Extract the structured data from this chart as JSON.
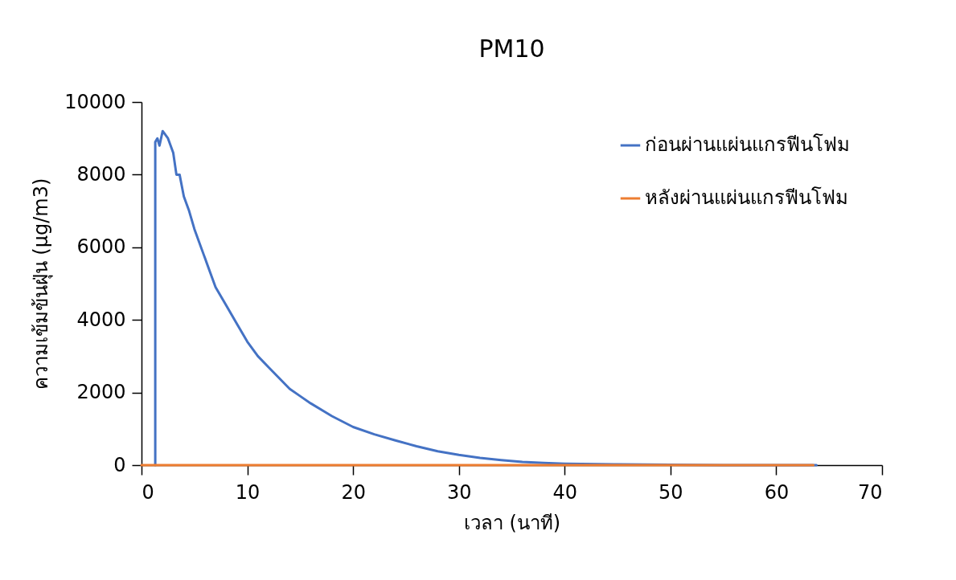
{
  "chart_data": {
    "type": "line",
    "title": "PM10",
    "xlabel": "เวลา (นาที)",
    "ylabel": "ความเข้มข้นฝุ่น (µg/m3)",
    "xlim": [
      0,
      70
    ],
    "xticks": [
      0,
      10,
      20,
      30,
      40,
      50,
      60,
      70
    ],
    "ylim": [
      0,
      10000
    ],
    "yticks": [
      0,
      2000,
      4000,
      6000,
      8000,
      10000
    ],
    "grid": false,
    "legend": "top right",
    "marker": "none",
    "line_style": "solid",
    "series": [
      {
        "name": "ก่อนผ่านแผ่นแกรฟีนโฟม",
        "color": "#4472c4",
        "x": [
          1.3,
          1.3,
          1.5,
          1.7,
          2.0,
          2.5,
          3.0,
          3.3,
          3.6,
          4.0,
          4.5,
          5,
          6,
          6.5,
          7,
          8,
          9,
          10,
          11,
          12,
          13,
          14,
          15,
          16,
          18,
          20,
          22,
          24,
          26,
          28,
          30,
          32,
          34,
          36,
          38,
          40,
          45,
          50,
          55,
          60,
          63.8
        ],
        "values": [
          0,
          8900,
          9000,
          8800,
          9200,
          9000,
          8600,
          8000,
          8000,
          7400,
          7000,
          6500,
          5700,
          5300,
          4900,
          4400,
          3900,
          3400,
          3000,
          2700,
          2400,
          2100,
          1900,
          1700,
          1350,
          1050,
          850,
          680,
          520,
          380,
          280,
          200,
          140,
          90,
          60,
          40,
          20,
          10,
          0,
          0,
          0
        ]
      },
      {
        "name": "หลังผ่านแผ่นแกรฟีนโฟม",
        "color": "#ed7d31",
        "x": [
          0,
          63.5
        ],
        "values": [
          0,
          0
        ]
      }
    ]
  }
}
